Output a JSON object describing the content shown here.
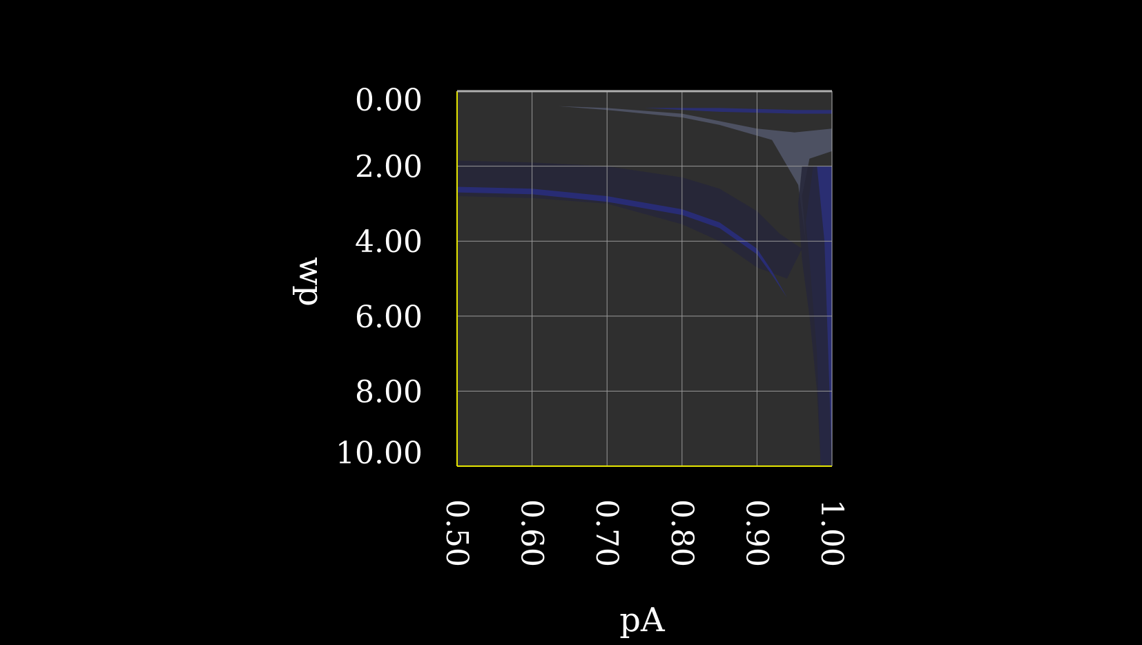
{
  "chart_data": {
    "type": "heatmap",
    "title": "",
    "xlabel": "pA",
    "ylabel": "wp",
    "xlim": [
      0.5,
      1.0
    ],
    "ylim": [
      0.0,
      10.0
    ],
    "y_inverted": true,
    "x_ticks": [
      "0.50",
      "0.60",
      "0.70",
      "0.80",
      "0.90",
      "1.00"
    ],
    "x_tick_values": [
      0.5,
      0.6,
      0.7,
      0.8,
      0.9,
      1.0
    ],
    "y_ticks": [
      "0.00",
      "2.00",
      "4.00",
      "6.00",
      "8.00",
      "10.00"
    ],
    "y_tick_values": [
      0,
      2,
      4,
      6,
      8,
      10
    ],
    "grid": true,
    "colors": {
      "background": "#000000",
      "plot_area": "#2f2f2f",
      "grid": "#9a9a9a",
      "axis_edge": "#e6e600",
      "band_dark": "#26263a",
      "band_blue": "#2a2f8a",
      "band_grey": "#5a5f78"
    },
    "bands": [
      {
        "name": "",
        "kind": "dark",
        "upper": [
          [
            0.5,
            1.85
          ],
          [
            0.6,
            1.9
          ],
          [
            0.7,
            2.0
          ],
          [
            0.8,
            2.3
          ],
          [
            0.85,
            2.6
          ],
          [
            0.9,
            3.2
          ],
          [
            0.93,
            3.8
          ],
          [
            0.96,
            4.2
          ]
        ],
        "lower": [
          [
            0.96,
            4.2
          ],
          [
            0.94,
            5.0
          ],
          [
            0.9,
            4.7
          ],
          [
            0.85,
            4.0
          ],
          [
            0.8,
            3.55
          ],
          [
            0.7,
            3.0
          ],
          [
            0.6,
            2.85
          ],
          [
            0.5,
            2.8
          ]
        ]
      },
      {
        "name": "",
        "kind": "blue",
        "upper": [
          [
            0.5,
            2.55
          ],
          [
            0.6,
            2.6
          ],
          [
            0.7,
            2.8
          ],
          [
            0.8,
            3.15
          ],
          [
            0.85,
            3.5
          ],
          [
            0.9,
            4.2
          ],
          [
            0.92,
            4.8
          ],
          [
            0.94,
            5.5
          ]
        ],
        "lower": [
          [
            0.94,
            5.5
          ],
          [
            0.92,
            4.9
          ],
          [
            0.9,
            4.35
          ],
          [
            0.85,
            3.65
          ],
          [
            0.8,
            3.3
          ],
          [
            0.7,
            2.95
          ],
          [
            0.6,
            2.75
          ],
          [
            0.5,
            2.7
          ]
        ]
      },
      {
        "name": "",
        "kind": "grey",
        "upper": [
          [
            0.635,
            0.4
          ],
          [
            0.7,
            0.45
          ],
          [
            0.8,
            0.6
          ],
          [
            0.85,
            0.8
          ],
          [
            0.9,
            1.0
          ],
          [
            0.95,
            1.1
          ],
          [
            1.0,
            1.0
          ]
        ],
        "lower": [
          [
            1.0,
            1.6
          ],
          [
            0.97,
            1.8
          ],
          [
            0.96,
            2.8
          ],
          [
            0.965,
            4.0
          ],
          [
            0.955,
            2.5
          ],
          [
            0.92,
            1.3
          ],
          [
            0.85,
            0.9
          ],
          [
            0.8,
            0.7
          ],
          [
            0.7,
            0.5
          ],
          [
            0.635,
            0.4
          ]
        ]
      },
      {
        "name": "",
        "kind": "blue",
        "upper": [
          [
            0.75,
            0.45
          ],
          [
            0.85,
            0.45
          ],
          [
            0.95,
            0.5
          ],
          [
            1.0,
            0.5
          ]
        ],
        "lower": [
          [
            1.0,
            0.6
          ],
          [
            0.95,
            0.6
          ],
          [
            0.85,
            0.55
          ],
          [
            0.75,
            0.45
          ]
        ]
      },
      {
        "name": "",
        "kind": "blue",
        "upper": [
          [
            0.975,
            2.0
          ],
          [
            1.0,
            2.0
          ],
          [
            1.0,
            10.0
          ],
          [
            0.985,
            10.0
          ],
          [
            0.98,
            7.0
          ],
          [
            0.97,
            4.5
          ]
        ],
        "lower": [
          [
            0.97,
            4.5
          ],
          [
            0.965,
            3.5
          ],
          [
            0.975,
            2.0
          ]
        ]
      },
      {
        "name": "",
        "kind": "dark",
        "upper": [
          [
            0.96,
            2.0
          ],
          [
            0.98,
            2.0
          ],
          [
            0.99,
            4.0
          ],
          [
            0.995,
            7.0
          ],
          [
            1.0,
            10.0
          ]
        ],
        "lower": [
          [
            0.985,
            10.0
          ],
          [
            0.98,
            8.0
          ],
          [
            0.97,
            6.0
          ],
          [
            0.96,
            4.5
          ],
          [
            0.955,
            3.0
          ]
        ]
      }
    ]
  }
}
